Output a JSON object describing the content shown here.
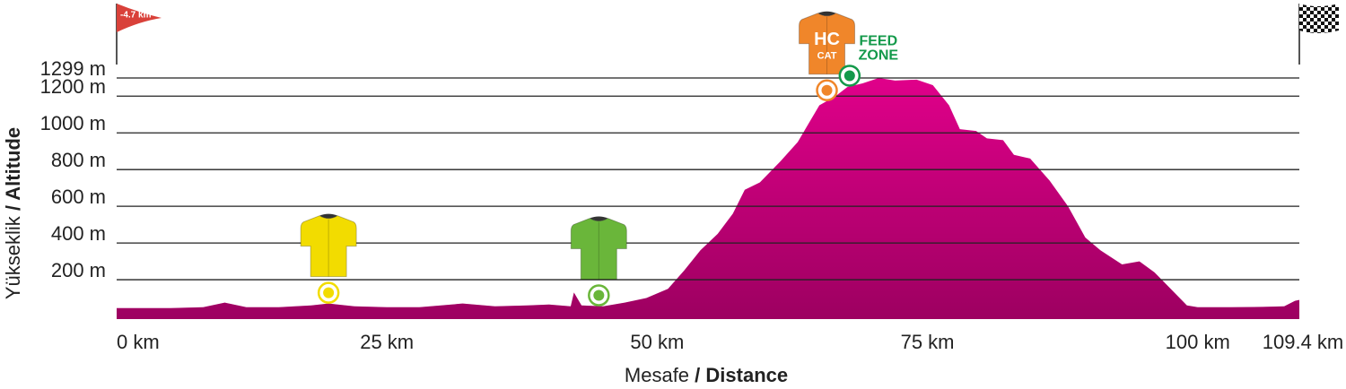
{
  "chart_data": {
    "type": "area",
    "color": "#e0008a",
    "y_label": {
      "light": "Yükseklik",
      "bold": "/ Altitude"
    },
    "x_label": {
      "light": "Mesafe",
      "bold": "/ Distance"
    },
    "start_flag": "-4.7 km",
    "xlim": [
      0,
      109.4
    ],
    "ylim": [
      0,
      1299
    ],
    "xticks": [
      {
        "value": 0,
        "label": "0 km"
      },
      {
        "value": 25,
        "label": "25 km"
      },
      {
        "value": 50,
        "label": "50 km"
      },
      {
        "value": 75,
        "label": "75 km"
      },
      {
        "value": 100,
        "label": "100 km"
      },
      {
        "value": 109.4,
        "label": "109.4 km"
      }
    ],
    "yticks": [
      {
        "value": 200,
        "label": "200 m"
      },
      {
        "value": 400,
        "label": "400 m"
      },
      {
        "value": 600,
        "label": "600 m"
      },
      {
        "value": 800,
        "label": "800 m"
      },
      {
        "value": 1000,
        "label": "1000 m"
      },
      {
        "value": 1200,
        "label": "1200 m"
      },
      {
        "value": 1299,
        "label": "1299 m"
      }
    ],
    "grid": true,
    "x": [
      0,
      5,
      8,
      10,
      12,
      15,
      18,
      19.6,
      22,
      25,
      28,
      30,
      32,
      35,
      38,
      40,
      42,
      42.3,
      43,
      45,
      47,
      49,
      51,
      52.5,
      54,
      55.6,
      57,
      58.1,
      59.5,
      61.4,
      63,
      63.9,
      65,
      66.5,
      67.6,
      69,
      70.5,
      72,
      74,
      75.5,
      77,
      78,
      79.5,
      80.5,
      82,
      83,
      84.5,
      86.3,
      88,
      89.6,
      91,
      93,
      94.6,
      96,
      97.5,
      99,
      100,
      103,
      106,
      108,
      109,
      109.4
    ],
    "values": [
      45,
      45,
      50,
      75,
      50,
      50,
      60,
      70,
      55,
      50,
      50,
      60,
      70,
      55,
      60,
      65,
      55,
      130,
      60,
      55,
      75,
      100,
      150,
      250,
      360,
      450,
      560,
      690,
      730,
      845,
      950,
      1040,
      1150,
      1200,
      1250,
      1270,
      1299,
      1285,
      1290,
      1260,
      1150,
      1020,
      1010,
      970,
      960,
      880,
      860,
      740,
      600,
      430,
      360,
      283,
      300,
      240,
      150,
      60,
      50,
      50,
      52,
      55,
      85,
      90
    ],
    "markers": [
      {
        "x": 19.6,
        "color": "#f2dc00"
      },
      {
        "x": 44.6,
        "color": "#6ab63a"
      },
      {
        "x": 65.7,
        "color": "#f0862a",
        "texts": [
          "HC",
          "CAT"
        ]
      },
      {
        "x": 67.8,
        "color": "#13994a",
        "texts": [
          "FEED",
          "ZONE"
        ]
      }
    ]
  }
}
